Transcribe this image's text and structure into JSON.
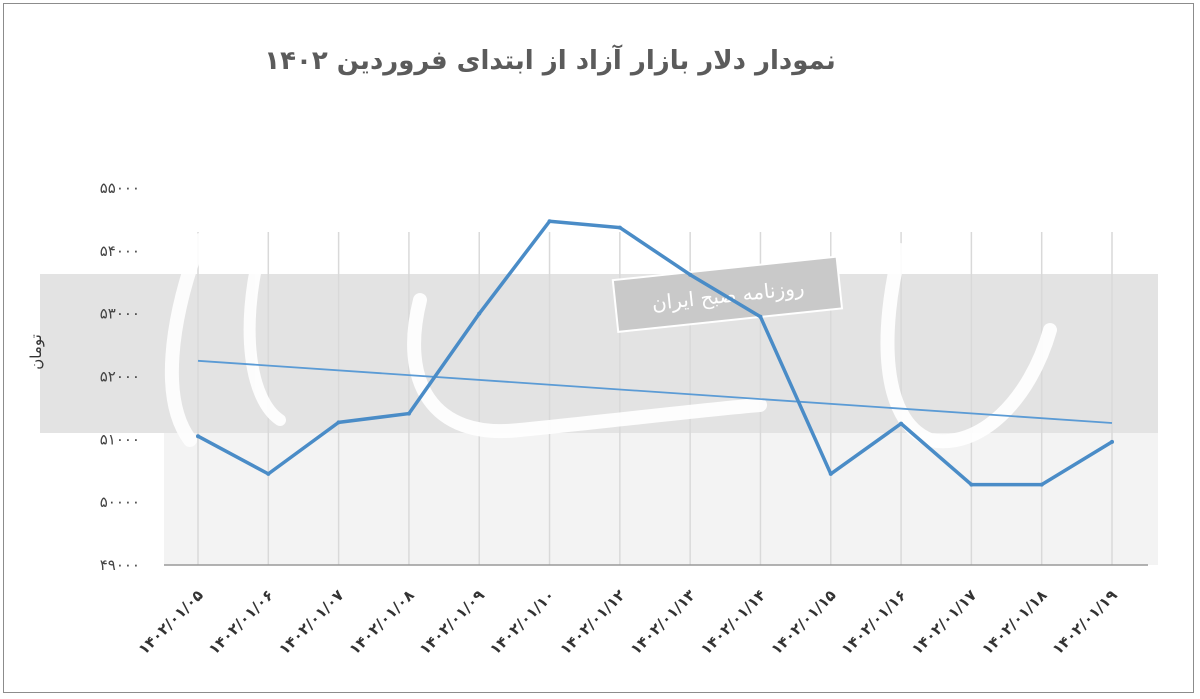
{
  "chart_data": {
    "type": "line",
    "title": "نمودار دلار بازار آزاد از ابتدای فروردین ۱۴۰۲",
    "ylabel": "تومان",
    "xlabel": "",
    "ylim": [
      49000,
      55000
    ],
    "yticks": [
      "۴۹۰۰۰",
      "۵۰۰۰۰",
      "۵۱۰۰۰",
      "۵۲۰۰۰",
      "۵۳۰۰۰",
      "۵۴۰۰۰",
      "۵۵۰۰۰"
    ],
    "ytick_values": [
      49000,
      50000,
      51000,
      52000,
      53000,
      54000,
      55000
    ],
    "categories": [
      "۱۴۰۲/۰۱/۰۵",
      "۱۴۰۲/۰۱/۰۶",
      "۱۴۰۲/۰۱/۰۷",
      "۱۴۰۲/۰۱/۰۸",
      "۱۴۰۲/۰۱/۰۹",
      "۱۴۰۲/۰۱/۱۰",
      "۱۴۰۲/۰۱/۱۲",
      "۱۴۰۲/۰۱/۱۳",
      "۱۴۰۲/۰۱/۱۴",
      "۱۴۰۲/۰۱/۱۵",
      "۱۴۰۲/۰۱/۱۶",
      "۱۴۰۲/۰۱/۱۷",
      "۱۴۰۲/۰۱/۱۸",
      "۱۴۰۲/۰۱/۱۹"
    ],
    "series": [
      {
        "values": [
          51050,
          50450,
          51270,
          51410,
          53000,
          54470,
          54370,
          53620,
          52950,
          50450,
          51250,
          50280,
          50280,
          50960
        ],
        "color": "#4a8cc7"
      }
    ],
    "trendline": {
      "start": 52250,
      "end": 51260,
      "color": "#5b9bd5"
    },
    "grid": "vertical",
    "legend": "none"
  },
  "watermark": {
    "brand": "دنیای اقتصاد",
    "stamp": "روزنامه صبح ایران"
  },
  "colors": {
    "line": "#4a8cc7",
    "band": "#e3e3e3",
    "grid": "#d9d9d9",
    "axis": "#999999"
  }
}
